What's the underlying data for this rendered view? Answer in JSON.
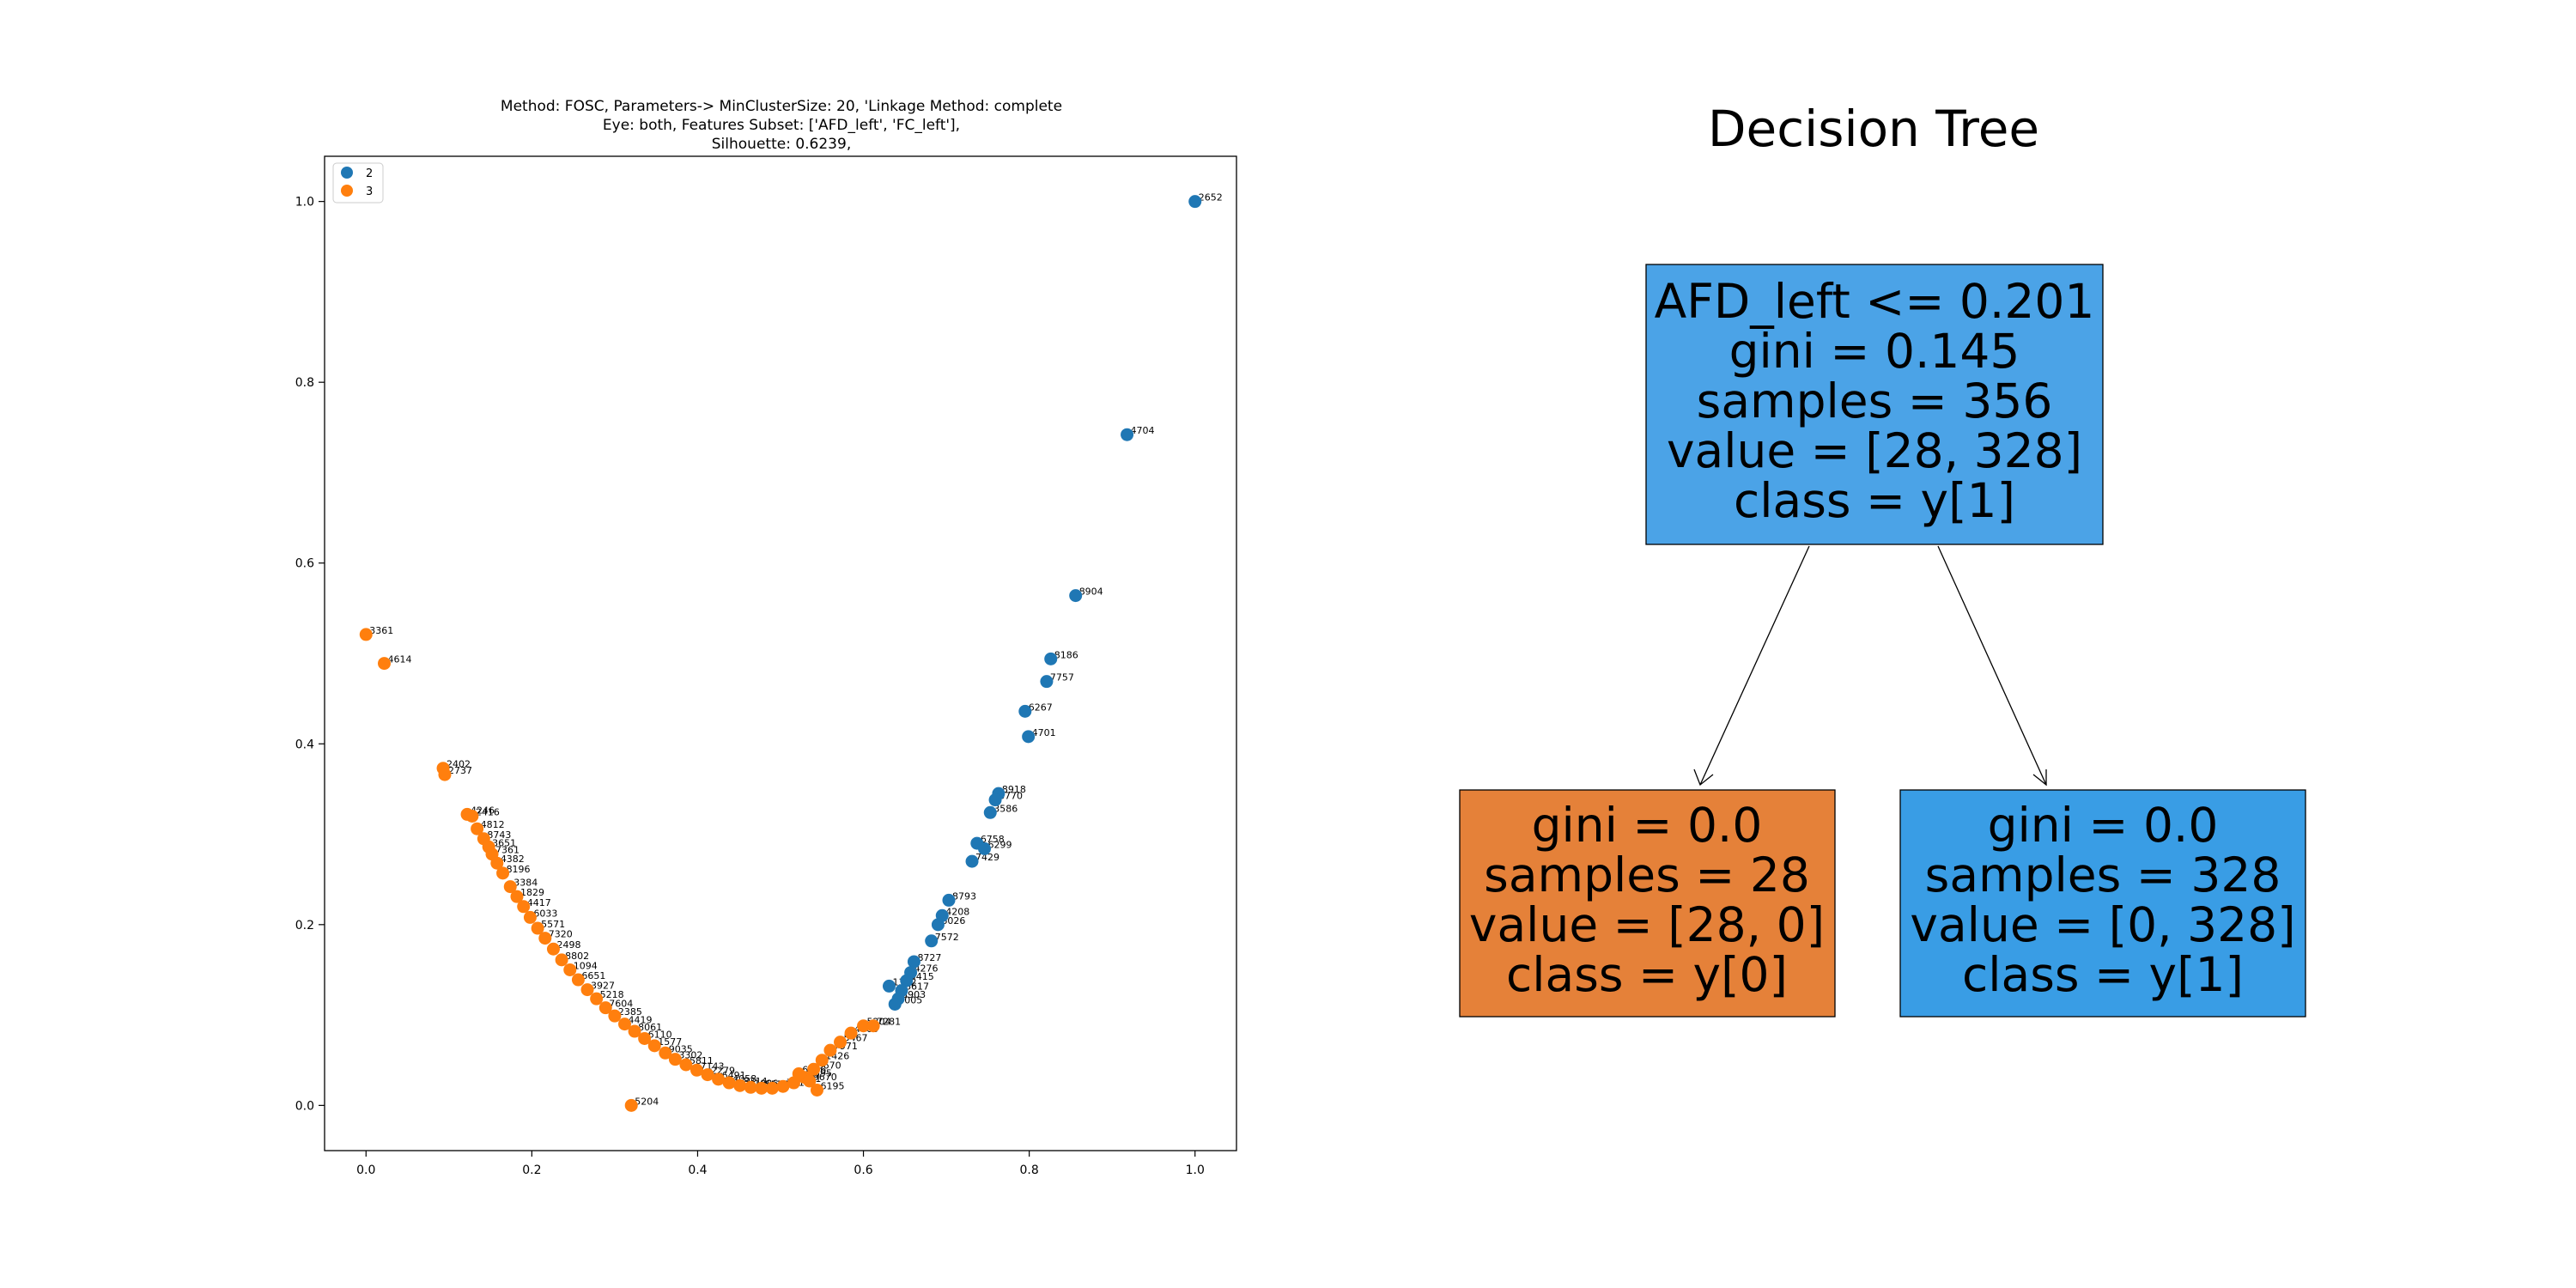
{
  "scatter": {
    "title_lines": [
      "Method: FOSC, Parameters-> MinClusterSize: 20, 'Linkage Method: complete",
      "Eye: both, Features Subset: ['AFD_left', 'FC_left'],",
      "Silhouette: 0.6239,"
    ],
    "legend": [
      {
        "label": "2",
        "color": "#1f77b4"
      },
      {
        "label": "3",
        "color": "#ff7f0e"
      }
    ],
    "x_ticks": [
      "0.0",
      "0.2",
      "0.4",
      "0.6",
      "0.8",
      "1.0"
    ],
    "y_ticks": [
      "0.0",
      "0.2",
      "0.4",
      "0.6",
      "0.8",
      "1.0"
    ]
  },
  "chart_data": {
    "type": "scatter",
    "title": "Method: FOSC, Parameters-> MinClusterSize: 20, 'Linkage Method: complete Eye: both, Features Subset: ['AFD_left', 'FC_left'], Silhouette: 0.6239,",
    "xlim": [
      -0.05,
      1.05
    ],
    "ylim": [
      -0.05,
      1.05
    ],
    "grid": false,
    "legend_position": "top-left",
    "series": [
      {
        "name": "2",
        "color": "#1f77b4",
        "points": [
          {
            "x": 1.0,
            "y": 1.0,
            "label": "2652"
          },
          {
            "x": 0.918,
            "y": 0.742,
            "label": "4704"
          },
          {
            "x": 0.856,
            "y": 0.564,
            "label": "8904"
          },
          {
            "x": 0.826,
            "y": 0.494,
            "label": "8186"
          },
          {
            "x": 0.821,
            "y": 0.469,
            "label": "7757"
          },
          {
            "x": 0.795,
            "y": 0.436,
            "label": "6267"
          },
          {
            "x": 0.799,
            "y": 0.408,
            "label": "4701"
          },
          {
            "x": 0.763,
            "y": 0.345,
            "label": "8918"
          },
          {
            "x": 0.759,
            "y": 0.338,
            "label": "8770"
          },
          {
            "x": 0.753,
            "y": 0.324,
            "label": "3586"
          },
          {
            "x": 0.737,
            "y": 0.29,
            "label": "6758"
          },
          {
            "x": 0.746,
            "y": 0.284,
            "label": "6299"
          },
          {
            "x": 0.731,
            "y": 0.27,
            "label": "7429"
          },
          {
            "x": 0.703,
            "y": 0.227,
            "label": "8793"
          },
          {
            "x": 0.695,
            "y": 0.21,
            "label": "4208"
          },
          {
            "x": 0.69,
            "y": 0.2,
            "label": "6026"
          },
          {
            "x": 0.682,
            "y": 0.182,
            "label": "7572"
          },
          {
            "x": 0.661,
            "y": 0.159,
            "label": "8727"
          },
          {
            "x": 0.657,
            "y": 0.147,
            "label": "4276"
          },
          {
            "x": 0.652,
            "y": 0.138,
            "label": "5415"
          },
          {
            "x": 0.631,
            "y": 0.132,
            "label": "1302"
          },
          {
            "x": 0.646,
            "y": 0.127,
            "label": "6617"
          },
          {
            "x": 0.642,
            "y": 0.118,
            "label": "5903"
          },
          {
            "x": 0.638,
            "y": 0.112,
            "label": "4005"
          }
        ]
      },
      {
        "name": "3",
        "color": "#ff7f0e",
        "points": [
          {
            "x": 0.0,
            "y": 0.521,
            "label": "3361"
          },
          {
            "x": 0.022,
            "y": 0.489,
            "label": "4614"
          },
          {
            "x": 0.093,
            "y": 0.373,
            "label": "2402"
          },
          {
            "x": 0.095,
            "y": 0.366,
            "label": "2737"
          },
          {
            "x": 0.122,
            "y": 0.322,
            "label": "4246"
          },
          {
            "x": 0.128,
            "y": 0.32,
            "label": "2416"
          },
          {
            "x": 0.134,
            "y": 0.306,
            "label": "4812"
          },
          {
            "x": 0.142,
            "y": 0.295,
            "label": "8743"
          },
          {
            "x": 0.148,
            "y": 0.286,
            "label": "3651"
          },
          {
            "x": 0.152,
            "y": 0.278,
            "label": "7361"
          },
          {
            "x": 0.158,
            "y": 0.268,
            "label": "4382"
          },
          {
            "x": 0.165,
            "y": 0.257,
            "label": "8196"
          },
          {
            "x": 0.174,
            "y": 0.242,
            "label": "3384"
          },
          {
            "x": 0.182,
            "y": 0.231,
            "label": "1829"
          },
          {
            "x": 0.19,
            "y": 0.22,
            "label": "4417"
          },
          {
            "x": 0.198,
            "y": 0.208,
            "label": "6033"
          },
          {
            "x": 0.207,
            "y": 0.196,
            "label": "5571"
          },
          {
            "x": 0.216,
            "y": 0.185,
            "label": "7320"
          },
          {
            "x": 0.226,
            "y": 0.173,
            "label": "2498"
          },
          {
            "x": 0.236,
            "y": 0.161,
            "label": "8802"
          },
          {
            "x": 0.246,
            "y": 0.15,
            "label": "1094"
          },
          {
            "x": 0.256,
            "y": 0.139,
            "label": "6651"
          },
          {
            "x": 0.267,
            "y": 0.128,
            "label": "3927"
          },
          {
            "x": 0.278,
            "y": 0.118,
            "label": "5218"
          },
          {
            "x": 0.289,
            "y": 0.108,
            "label": "7604"
          },
          {
            "x": 0.3,
            "y": 0.099,
            "label": "2385"
          },
          {
            "x": 0.312,
            "y": 0.09,
            "label": "4419"
          },
          {
            "x": 0.324,
            "y": 0.082,
            "label": "8061"
          },
          {
            "x": 0.336,
            "y": 0.074,
            "label": "6110"
          },
          {
            "x": 0.348,
            "y": 0.066,
            "label": "1577"
          },
          {
            "x": 0.361,
            "y": 0.058,
            "label": "9035"
          },
          {
            "x": 0.373,
            "y": 0.051,
            "label": "3302"
          },
          {
            "x": 0.386,
            "y": 0.045,
            "label": "5811"
          },
          {
            "x": 0.399,
            "y": 0.039,
            "label": "7143"
          },
          {
            "x": 0.412,
            "y": 0.034,
            "label": "2279"
          },
          {
            "x": 0.425,
            "y": 0.029,
            "label": "6491"
          },
          {
            "x": 0.438,
            "y": 0.025,
            "label": "4058"
          },
          {
            "x": 0.451,
            "y": 0.022,
            "label": "8314"
          },
          {
            "x": 0.464,
            "y": 0.02,
            "label": "1986"
          },
          {
            "x": 0.477,
            "y": 0.019,
            "label": "5537"
          },
          {
            "x": 0.49,
            "y": 0.019,
            "label": "3629"
          },
          {
            "x": 0.503,
            "y": 0.021,
            "label": "7718"
          },
          {
            "x": 0.516,
            "y": 0.025,
            "label": "2941"
          },
          {
            "x": 0.529,
            "y": 0.031,
            "label": "8395"
          },
          {
            "x": 0.54,
            "y": 0.04,
            "label": "6670"
          },
          {
            "x": 0.55,
            "y": 0.05,
            "label": "1426"
          },
          {
            "x": 0.56,
            "y": 0.061,
            "label": "7971"
          },
          {
            "x": 0.572,
            "y": 0.07,
            "label": "5467"
          },
          {
            "x": 0.585,
            "y": 0.08,
            "label": "4863"
          },
          {
            "x": 0.6,
            "y": 0.088,
            "label": "5204"
          },
          {
            "x": 0.612,
            "y": 0.088,
            "label": "7281"
          },
          {
            "x": 0.544,
            "y": 0.017,
            "label": "6195"
          },
          {
            "x": 0.535,
            "y": 0.027,
            "label": "9670"
          },
          {
            "x": 0.522,
            "y": 0.035,
            "label": "6426"
          },
          {
            "x": 0.32,
            "y": 0.0,
            "label": "5204"
          }
        ]
      }
    ]
  },
  "tree": {
    "title": "Decision Tree",
    "nodes": [
      {
        "id": "root",
        "color": "#4ba3e7",
        "lines": [
          "AFD_left <= 0.201",
          "gini = 0.145",
          "samples = 356",
          "value = [28, 328]",
          "class = y[1]"
        ]
      },
      {
        "id": "left",
        "color": "#e58139",
        "lines": [
          "gini = 0.0",
          "samples = 28",
          "value = [28, 0]",
          "class = y[0]"
        ]
      },
      {
        "id": "right",
        "color": "#399de5",
        "lines": [
          "gini = 0.0",
          "samples = 328",
          "value = [0, 328]",
          "class = y[1]"
        ]
      }
    ]
  }
}
